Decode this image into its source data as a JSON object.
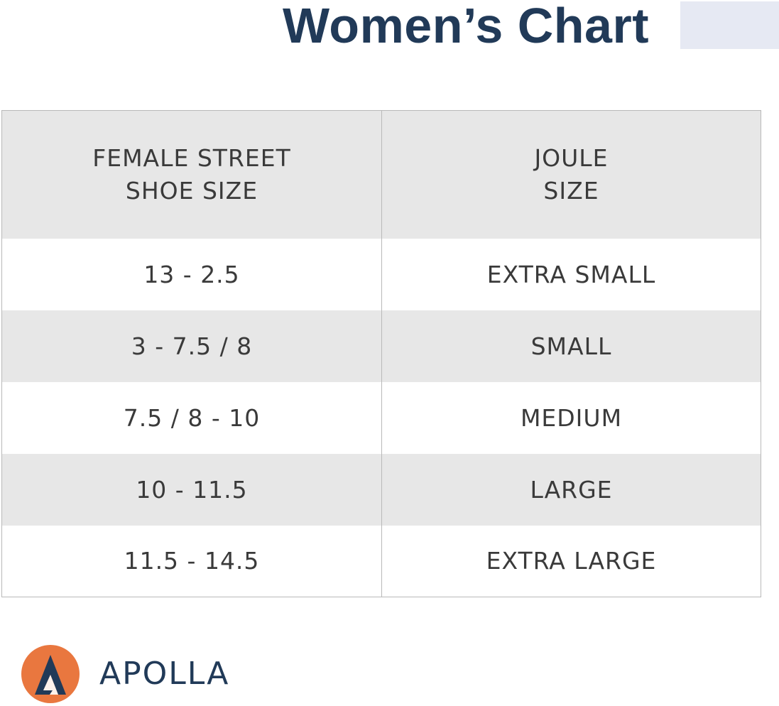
{
  "title": "Women’s Chart",
  "table": {
    "headers": [
      [
        "FEMALE STREET",
        "SHOE SIZE"
      ],
      [
        "JOULE",
        "SIZE"
      ]
    ],
    "rows": [
      [
        "13 - 2.5",
        "EXTRA SMALL"
      ],
      [
        "3 - 7.5 / 8",
        "SMALL"
      ],
      [
        "7.5 / 8 - 10",
        "MEDIUM"
      ],
      [
        "10 - 11.5",
        "LARGE"
      ],
      [
        "11.5 - 14.5",
        "EXTRA LARGE"
      ]
    ]
  },
  "brand": {
    "name": "APOLLA",
    "logo_icon": "apolla-a-logo-icon",
    "colors": {
      "title": "#213a58",
      "logo_circle": "#e9773f",
      "logo_a": "#213a58",
      "row_shade": "#e7e7e7",
      "title_block": "#e6e9f3"
    }
  }
}
